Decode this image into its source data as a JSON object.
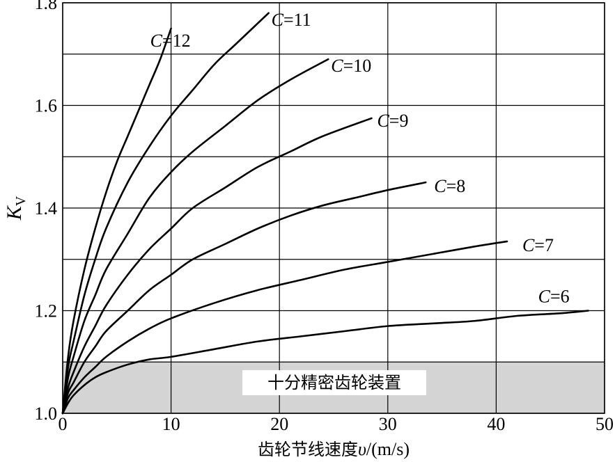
{
  "chart_data": {
    "type": "line",
    "title": "",
    "xlabel": "齿轮节线速度",
    "xlabel_var": "υ",
    "xlabel_unit": "/(m/s)",
    "ylabel_main": "K",
    "ylabel_sub": "V",
    "xlim": [
      0,
      50
    ],
    "ylim": [
      1.0,
      1.8
    ],
    "xticks": [
      0,
      10,
      20,
      30,
      40,
      50
    ],
    "xtick_labels": [
      "0",
      "10",
      "20",
      "30",
      "40",
      "50"
    ],
    "yticks": [
      1.0,
      1.2,
      1.4,
      1.6,
      1.8
    ],
    "ytick_labels": [
      "1.0",
      "1.2",
      "1.4",
      "1.6",
      "1.8"
    ],
    "grid": true,
    "region": {
      "label": "十分精密齿轮装置",
      "y_range": [
        1.0,
        1.1
      ],
      "x_range": [
        0,
        50
      ],
      "color": "#d4d4d4"
    },
    "series": [
      {
        "name": "C=12",
        "label_var": "C",
        "label_val": "=12",
        "x": [
          0,
          0.5,
          1,
          2,
          3,
          4,
          5,
          6,
          7,
          8,
          9,
          10
        ],
        "y": [
          1.0,
          1.11,
          1.18,
          1.28,
          1.36,
          1.43,
          1.49,
          1.54,
          1.59,
          1.64,
          1.69,
          1.75
        ]
      },
      {
        "name": "C=11",
        "label_var": "C",
        "label_val": "=11",
        "x": [
          0,
          0.5,
          1,
          2,
          3,
          4,
          6,
          8,
          10,
          12,
          14,
          16,
          19
        ],
        "y": [
          1.0,
          1.09,
          1.14,
          1.23,
          1.3,
          1.36,
          1.45,
          1.52,
          1.58,
          1.63,
          1.68,
          1.72,
          1.78
        ]
      },
      {
        "name": "C=10",
        "label_var": "C",
        "label_val": "=10",
        "x": [
          0,
          0.5,
          1,
          2,
          3,
          4,
          6,
          8,
          10,
          12,
          15,
          18,
          21,
          24.5
        ],
        "y": [
          1.0,
          1.07,
          1.11,
          1.18,
          1.23,
          1.28,
          1.35,
          1.42,
          1.47,
          1.51,
          1.56,
          1.61,
          1.65,
          1.69
        ]
      },
      {
        "name": "C=9",
        "label_var": "C",
        "label_val": "=9",
        "x": [
          0,
          0.5,
          1,
          2,
          3,
          4,
          6,
          8,
          10,
          12,
          15,
          18,
          21,
          24,
          28.5
        ],
        "y": [
          1.0,
          1.05,
          1.08,
          1.13,
          1.17,
          1.21,
          1.27,
          1.32,
          1.36,
          1.4,
          1.44,
          1.48,
          1.51,
          1.54,
          1.575
        ]
      },
      {
        "name": "C=8",
        "label_var": "C",
        "label_val": "=8",
        "x": [
          0,
          0.5,
          1,
          2,
          3,
          4,
          6,
          8,
          10,
          12,
          15,
          18,
          21,
          24,
          27,
          30,
          33.5
        ],
        "y": [
          1.0,
          1.04,
          1.06,
          1.1,
          1.13,
          1.16,
          1.2,
          1.24,
          1.27,
          1.3,
          1.33,
          1.36,
          1.385,
          1.405,
          1.42,
          1.435,
          1.45
        ]
      },
      {
        "name": "C=7",
        "label_var": "C",
        "label_val": "=7",
        "x": [
          0,
          0.5,
          1,
          2,
          3,
          4,
          6,
          8,
          10,
          14,
          18,
          22,
          26,
          30,
          34,
          38,
          41
        ],
        "y": [
          1.0,
          1.03,
          1.045,
          1.07,
          1.09,
          1.11,
          1.14,
          1.165,
          1.185,
          1.215,
          1.24,
          1.26,
          1.28,
          1.295,
          1.31,
          1.325,
          1.335
        ]
      },
      {
        "name": "C=6",
        "label_var": "C",
        "label_val": "=6",
        "x": [
          0,
          0.5,
          1,
          2,
          3,
          4,
          6,
          8,
          10,
          14,
          18,
          22,
          26,
          30,
          34,
          38,
          42,
          46,
          48.5
        ],
        "y": [
          1.0,
          1.02,
          1.035,
          1.055,
          1.07,
          1.08,
          1.095,
          1.105,
          1.11,
          1.125,
          1.14,
          1.15,
          1.16,
          1.17,
          1.175,
          1.18,
          1.19,
          1.195,
          1.2
        ]
      }
    ]
  }
}
